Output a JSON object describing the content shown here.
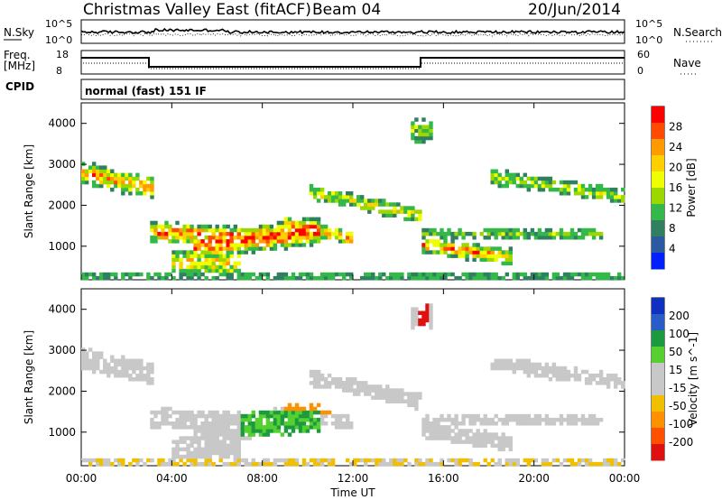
{
  "header": {
    "title": "Christmas Valley East (fitACF)",
    "beam": "Beam 04",
    "date": "20/Jun/2014"
  },
  "panels": {
    "nsky": {
      "left_label": "N.Sky",
      "right_label": "N.Search",
      "tick_top": "10^5",
      "tick_bottom": "10^0"
    },
    "freq": {
      "left_label_1": "Freq.",
      "left_label_2": "[MHz]",
      "left_tick_top": "18",
      "left_tick_bottom": "8",
      "right_label": "Nave",
      "right_tick_top": "60",
      "right_tick_bottom": "0"
    },
    "cpid": {
      "label": "CPID",
      "text": "normal (fast) 151 IF"
    }
  },
  "chart_data": [
    {
      "type": "heatmap",
      "name": "power",
      "ylabel": "Slant Range [km]",
      "xlabel": "Time UT",
      "colorbar_label": "Power [dB]",
      "colorbar_ticks": [
        "28",
        "24",
        "20",
        "16",
        "12",
        "8",
        "4"
      ],
      "colorbar_colors": [
        "#ff0000",
        "#ff4a00",
        "#ff9a00",
        "#ffd000",
        "#f0ff00",
        "#9cd800",
        "#34b84a",
        "#2f7f60",
        "#2b5aa0",
        "#0020ff"
      ],
      "x_ticks": [
        "00:00",
        "04:00",
        "08:00",
        "12:00",
        "16:00",
        "20:00",
        "00:00"
      ],
      "y_ticks": [
        "1000",
        "2000",
        "3000",
        "4000"
      ],
      "xlim": [
        0,
        24
      ],
      "ylim": [
        180,
        4500
      ]
    },
    {
      "type": "heatmap",
      "name": "velocity",
      "ylabel": "Slant Range [km]",
      "xlabel": "Time UT",
      "colorbar_label": "Velocity [m s^-1]",
      "colorbar_ticks": [
        "200",
        "100",
        "50",
        "15",
        "-15",
        "-50",
        "-100",
        "-200"
      ],
      "colorbar_colors": [
        "#1030c0",
        "#2a5cc8",
        "#1c9a40",
        "#55d030",
        "#c8c8c8",
        "#c8c8c8",
        "#f0c000",
        "#ff9000",
        "#ff5000",
        "#e01010"
      ],
      "x_ticks": [
        "00:00",
        "04:00",
        "08:00",
        "12:00",
        "16:00",
        "20:00",
        "00:00"
      ],
      "y_ticks": [
        "1000",
        "2000",
        "3000",
        "4000"
      ],
      "xlim": [
        0,
        24
      ],
      "ylim": [
        180,
        4500
      ]
    }
  ],
  "xaxis": {
    "label": "Time UT"
  }
}
